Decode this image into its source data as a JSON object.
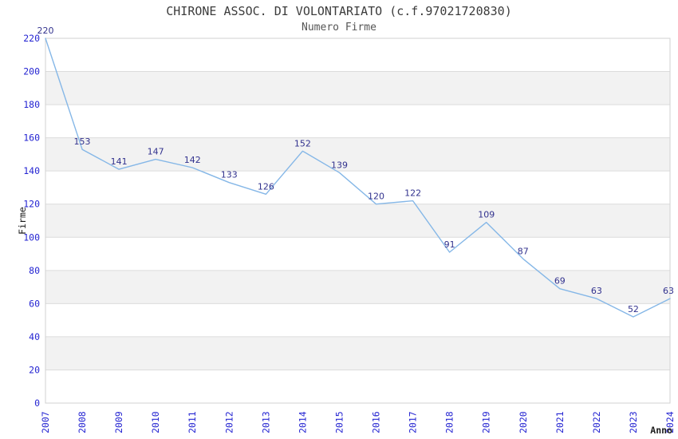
{
  "chart_data": {
    "type": "line",
    "title": "CHIRONE ASSOC. DI VOLONTARIATO (c.f.97021720830)",
    "subtitle": "Numero Firme",
    "xlabel": "Anno",
    "ylabel": "Firme",
    "categories": [
      "2007",
      "2008",
      "2009",
      "2010",
      "2011",
      "2012",
      "2013",
      "2014",
      "2015",
      "2016",
      "2017",
      "2018",
      "2019",
      "2020",
      "2021",
      "2022",
      "2023",
      "2024"
    ],
    "values": [
      220,
      153,
      141,
      147,
      142,
      133,
      126,
      152,
      139,
      120,
      122,
      91,
      109,
      87,
      69,
      63,
      52,
      63
    ],
    "ylim": [
      0,
      220
    ],
    "ytick_step": 20,
    "yticks": [
      0,
      20,
      40,
      60,
      80,
      100,
      120,
      140,
      160,
      180,
      200,
      220
    ],
    "grid": "horizontal-gridlines-with-alternating-bands",
    "legend": "none",
    "markers": "none",
    "colors": {
      "line": "#85b7e7",
      "value_label": "#32328e",
      "tick_label": "#2525d2",
      "axis_title": "#1c1c1c",
      "band": "#f2f2f2",
      "gridline": "#dcdcdc",
      "border": "#d2d2d2",
      "background": "#ffffff"
    }
  }
}
